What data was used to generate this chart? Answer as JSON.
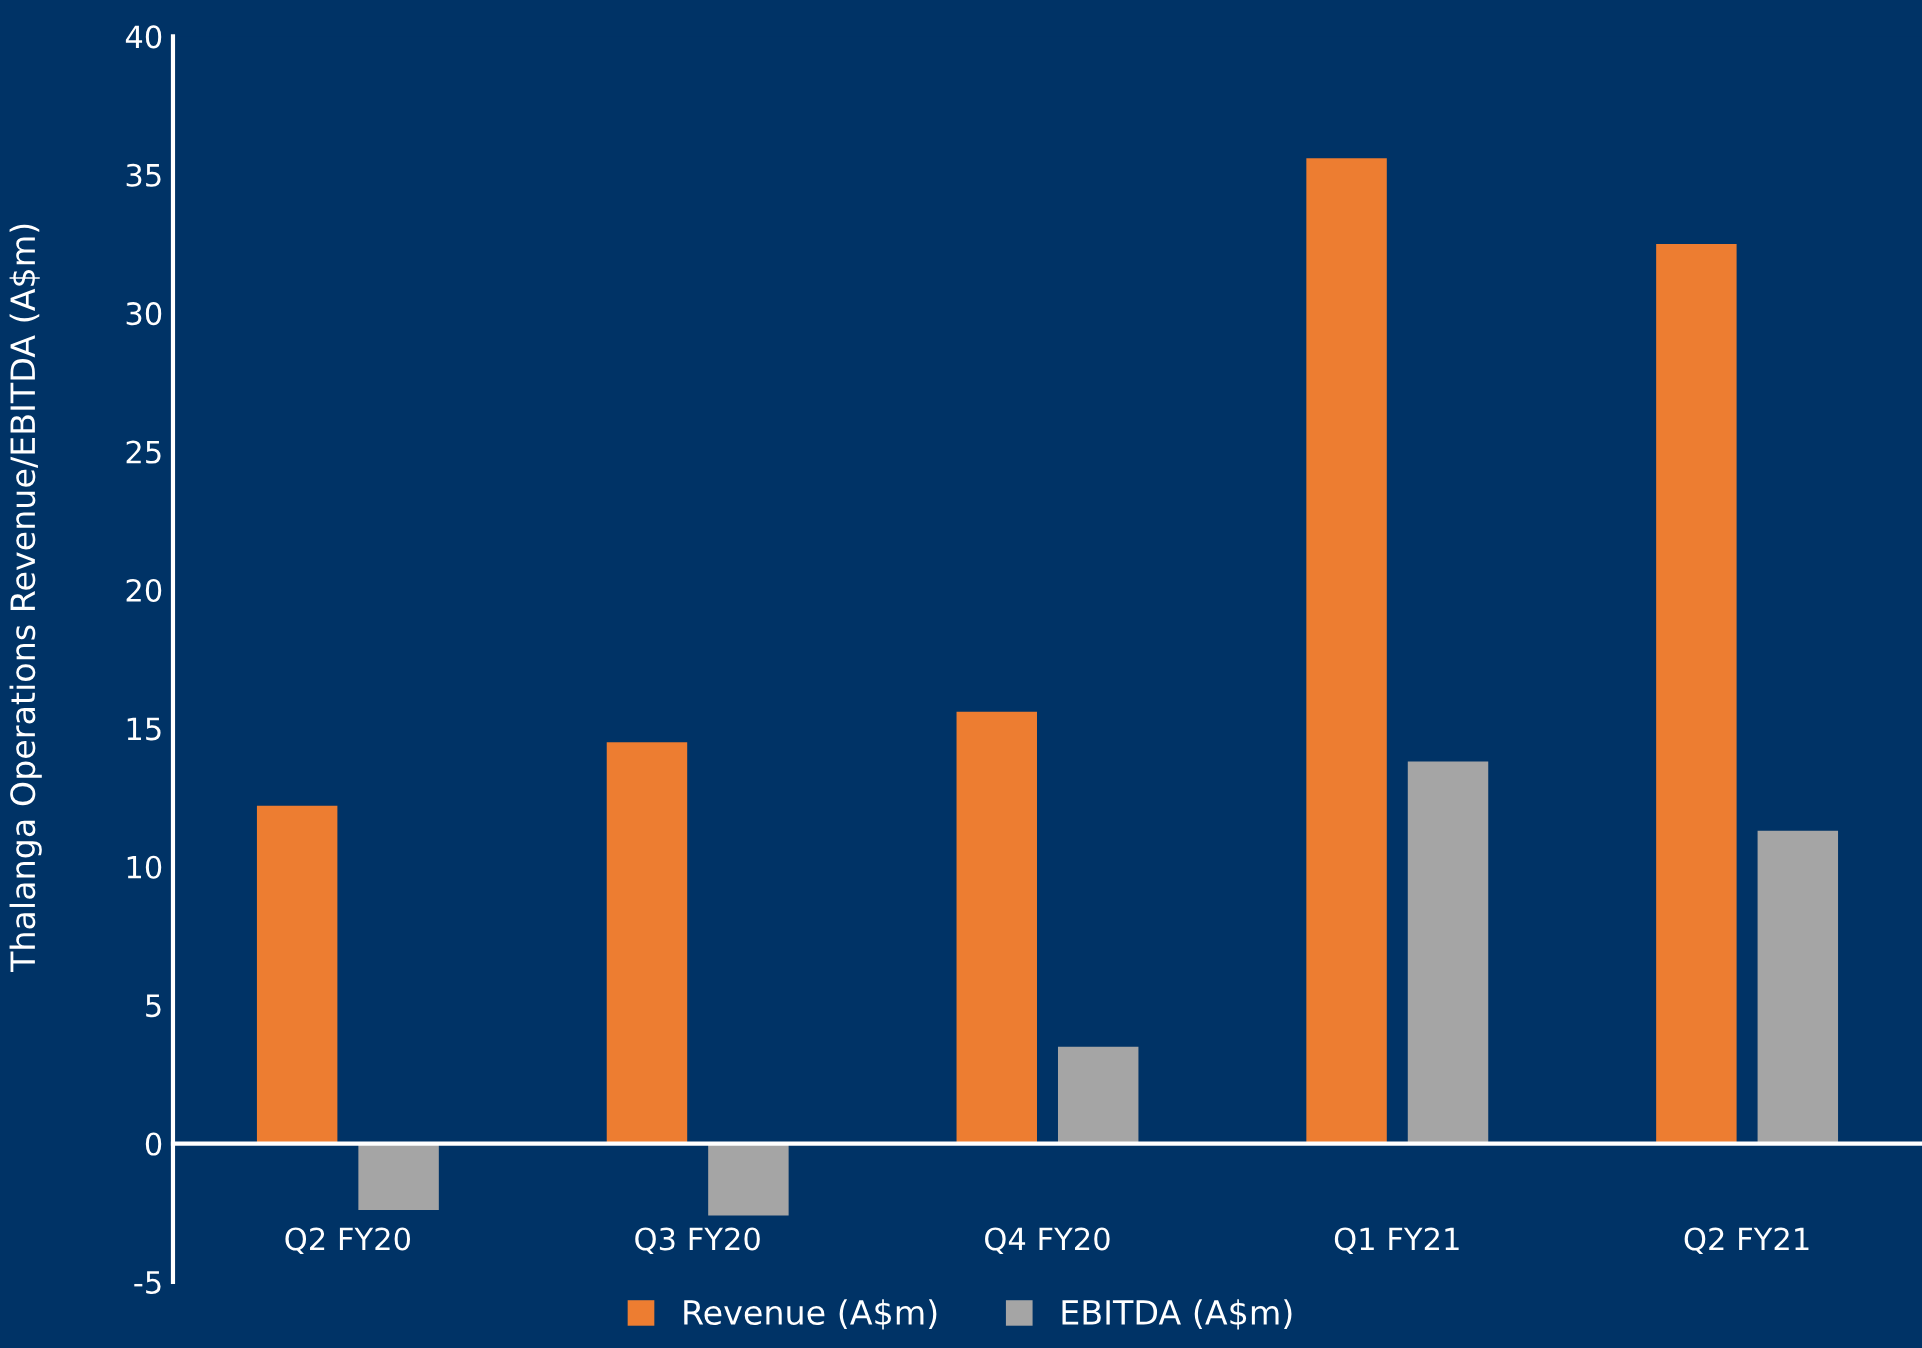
{
  "chart_data": {
    "type": "bar",
    "ylabel": "Thalanga Operations Revenue/EBITDA (A$m)",
    "categories": [
      "Q2 FY20",
      "Q3 FY20",
      "Q4 FY20",
      "Q1 FY21",
      "Q2 FY21"
    ],
    "series": [
      {
        "name": "Revenue (A$m)",
        "color": "#ed7d31",
        "values": [
          12.2,
          14.5,
          15.6,
          35.6,
          32.5
        ]
      },
      {
        "name": "EBITDA (A$m)",
        "color": "#a5a5a5",
        "values": [
          -2.4,
          -2.6,
          3.5,
          13.8,
          11.3
        ]
      }
    ],
    "ylim": [
      -5,
      40
    ],
    "yticks": [
      -5,
      0,
      5,
      10,
      15,
      20,
      25,
      30,
      35,
      40
    ],
    "legend": "bottom"
  }
}
